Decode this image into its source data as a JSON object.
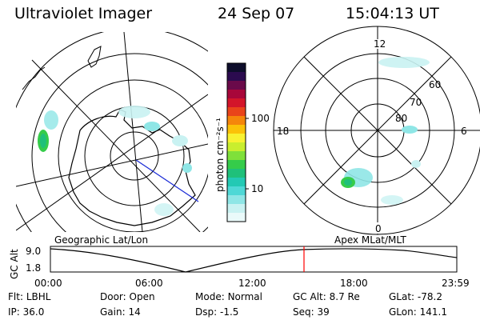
{
  "header": {
    "instrument": "Ultraviolet Imager",
    "date": "24 Sep 07",
    "time": "15:04:13 UT"
  },
  "colorbar": {
    "unit_label": "photon cm⁻²s⁻¹",
    "ticks": [
      "100",
      "10"
    ],
    "colors": [
      "#0d0d2b",
      "#2b0b4f",
      "#6a0a4a",
      "#a8073a",
      "#d3152a",
      "#e9441a",
      "#f5860b",
      "#fbc208",
      "#f8f231",
      "#c9ee2e",
      "#7fe03a",
      "#35cc4a",
      "#1fc07a",
      "#23c9b4",
      "#4fd8d6",
      "#8fe6e6",
      "#c9f2f2",
      "#eafafa"
    ]
  },
  "geo_map": {
    "title": "Geographic Lat/Lon"
  },
  "mlt_map": {
    "title": "Apex MLat/MLT",
    "mlt_labels": {
      "top": "12",
      "bottom": "0",
      "left": "18",
      "right": "6"
    },
    "lat_labels": [
      "60",
      "70",
      "80"
    ]
  },
  "timeline": {
    "y_label": "GC Alt",
    "y_ticks": [
      "9.0",
      "1.8"
    ],
    "x_ticks": [
      "00:00",
      "06:00",
      "12:00",
      "18:00",
      "23:59"
    ],
    "marker_time": "15:04",
    "marker_color": "#ff0000"
  },
  "info": {
    "row1": [
      {
        "label": "Flt:",
        "value": "LBHL"
      },
      {
        "label": "Door:",
        "value": "Open"
      },
      {
        "label": "Mode:",
        "value": "Normal"
      },
      {
        "label": "GC Alt:",
        "value": "8.7 Re"
      },
      {
        "label": "GLat:",
        "value": "-78.2"
      }
    ],
    "row2": [
      {
        "label": "IP:",
        "value": "36.0"
      },
      {
        "label": "Gain:",
        "value": "14"
      },
      {
        "label": "Dsp:",
        "value": "-1.5"
      },
      {
        "label": "Seq:",
        "value": "39"
      },
      {
        "label": "GLon:",
        "value": "141.1"
      }
    ]
  }
}
